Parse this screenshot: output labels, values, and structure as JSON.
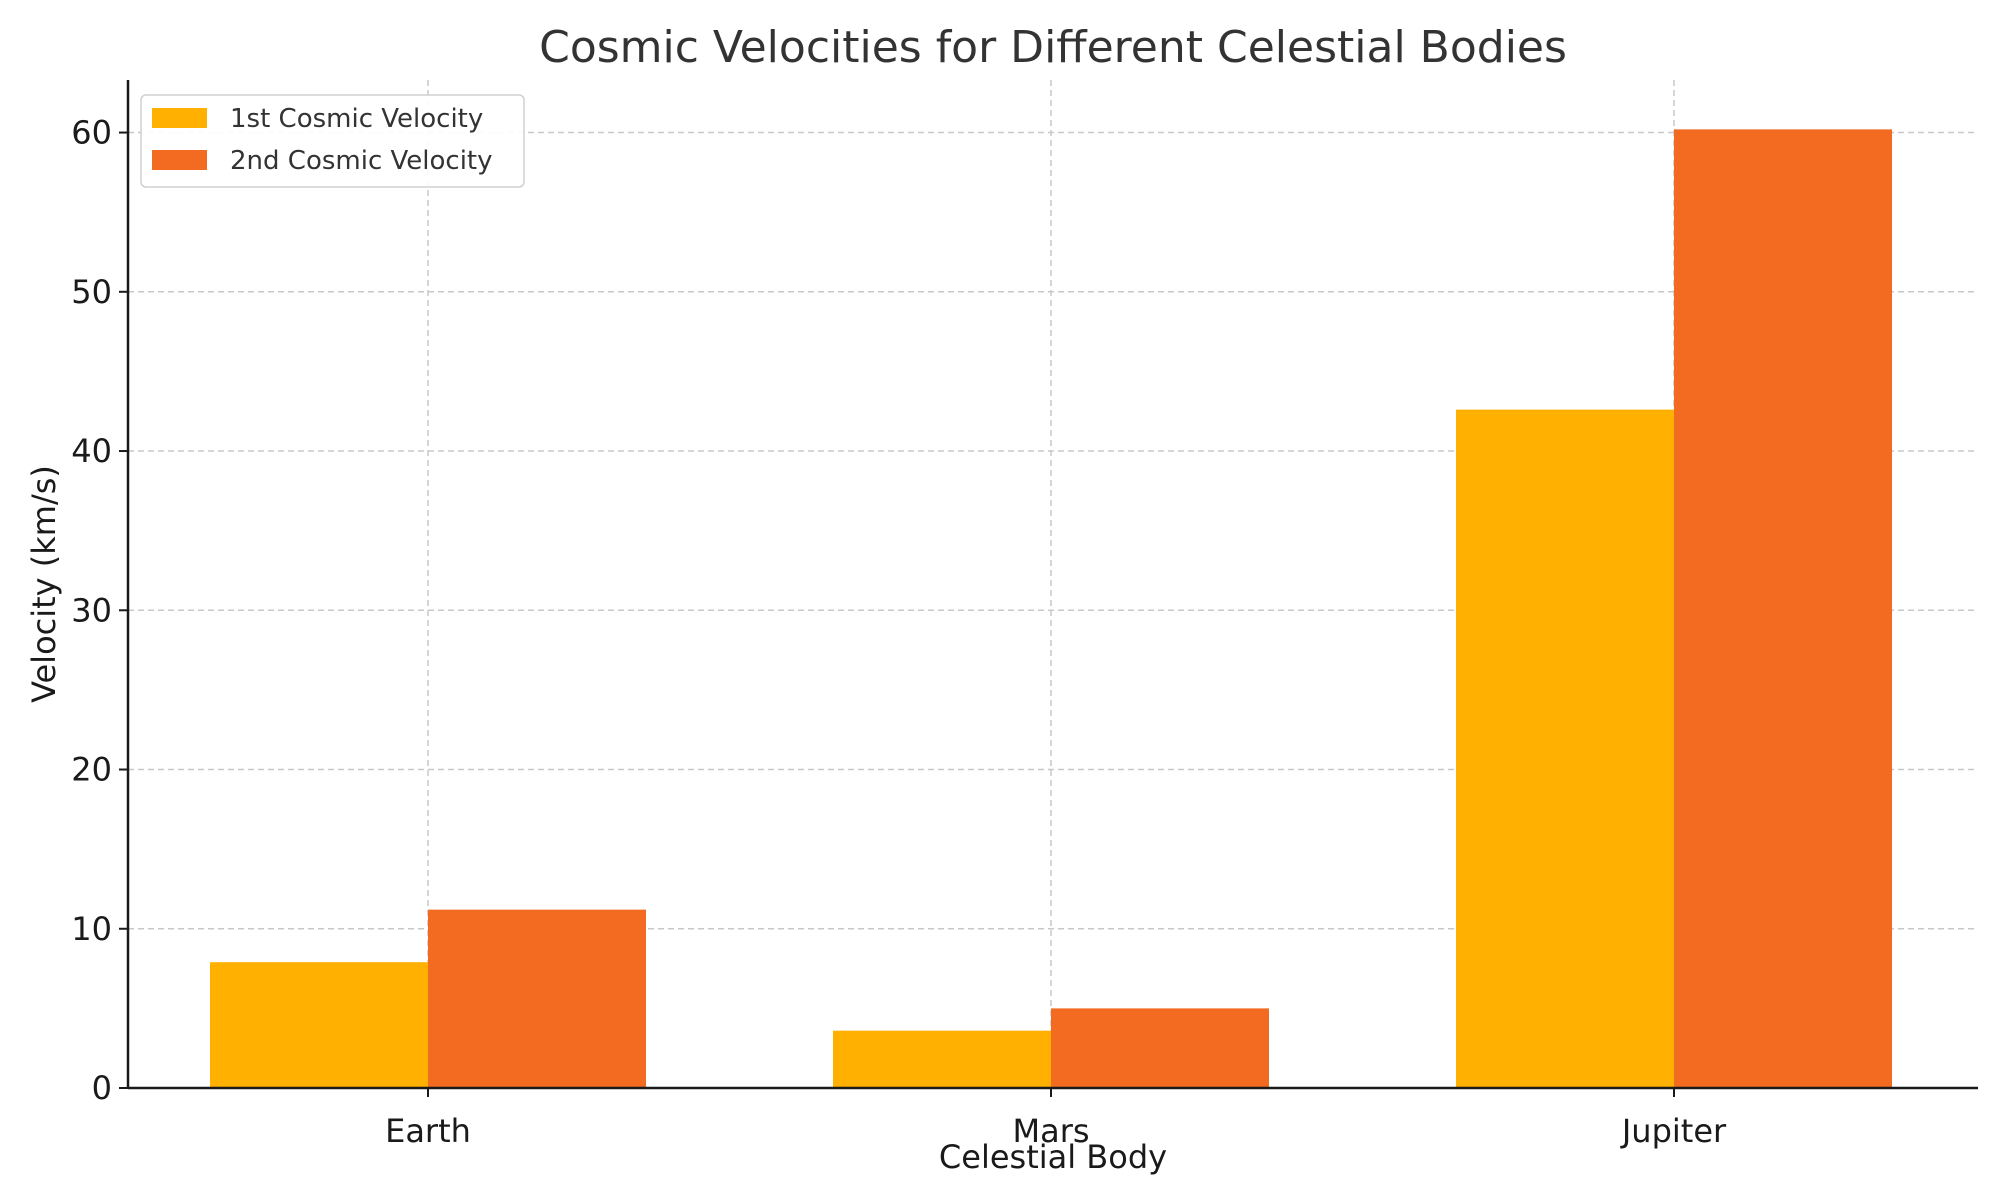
{
  "chart_data": {
    "type": "bar",
    "title": "Cosmic Velocities for Different Celestial Bodies",
    "xlabel": "Celestial Body",
    "ylabel": "Velocity (km/s)",
    "categories": [
      "Earth",
      "Mars",
      "Jupiter"
    ],
    "series": [
      {
        "name": "1st Cosmic Velocity",
        "values": [
          7.9,
          3.6,
          42.6
        ],
        "color": "#FFB000"
      },
      {
        "name": "2nd Cosmic Velocity",
        "values": [
          11.2,
          5.0,
          60.2
        ],
        "color": "#F36B21"
      }
    ],
    "ylim": [
      0,
      63.3
    ],
    "yticks": [
      0,
      10,
      20,
      30,
      40,
      50,
      60
    ],
    "grid": true,
    "legend_position": "top-left"
  }
}
